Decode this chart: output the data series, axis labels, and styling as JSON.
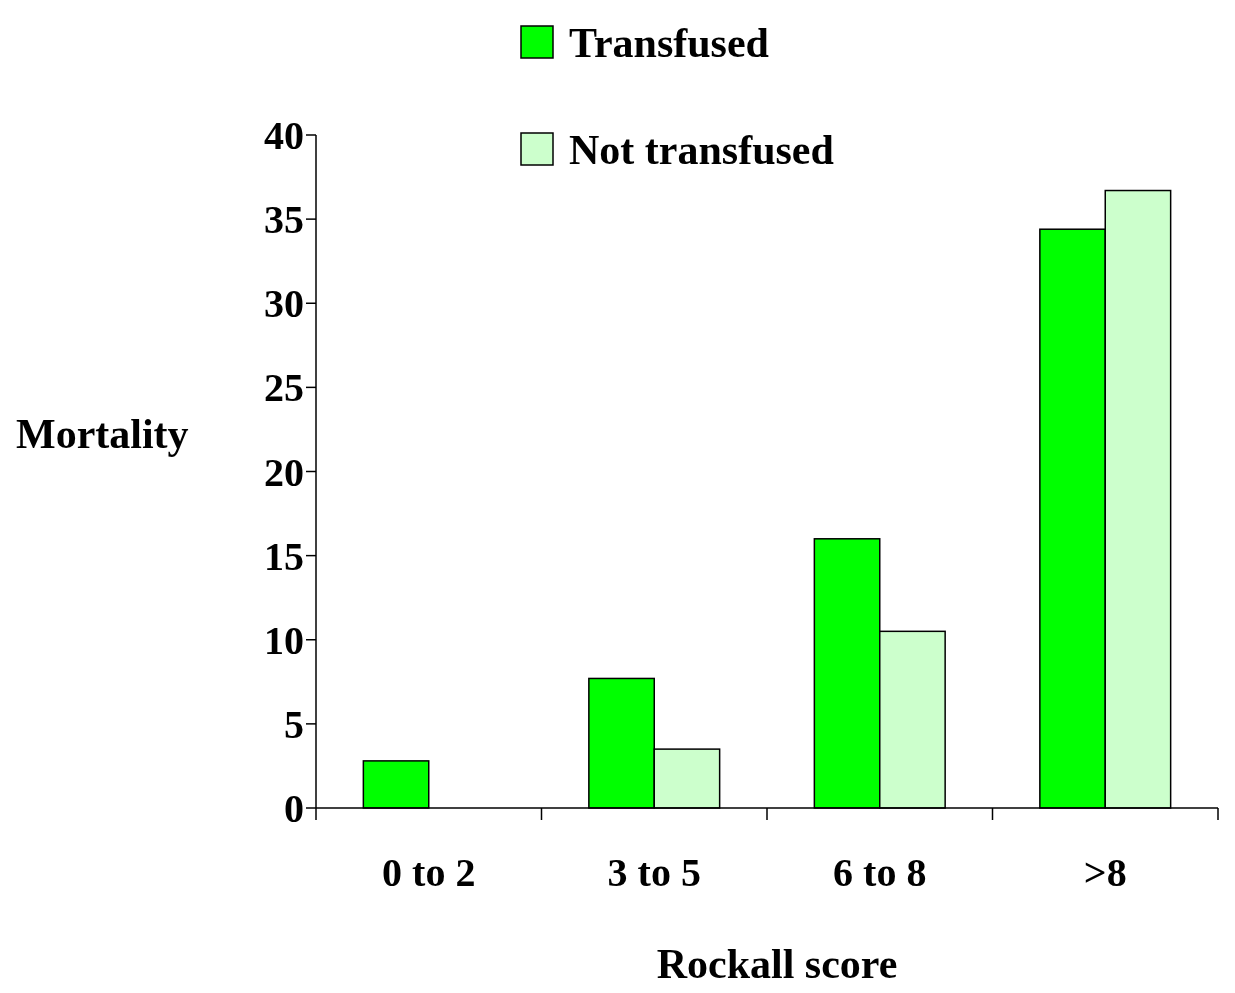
{
  "chart_data": {
    "type": "bar",
    "xlabel": "Rockall score",
    "ylabel": "Mortality",
    "categories": [
      "0 to 2",
      "3 to 5",
      "6 to 8",
      ">8"
    ],
    "series": [
      {
        "name": "Transfused",
        "color": "#00ff00",
        "values": [
          2.8,
          7.7,
          16.0,
          34.4
        ]
      },
      {
        "name": "Not transfused",
        "color": "#ccffcc",
        "values": [
          0,
          3.5,
          10.5,
          36.7
        ]
      }
    ],
    "ylim": [
      0,
      40
    ],
    "yticks": [
      0,
      5,
      10,
      15,
      20,
      25,
      30,
      35,
      40
    ],
    "grid": false,
    "legend": "top"
  }
}
